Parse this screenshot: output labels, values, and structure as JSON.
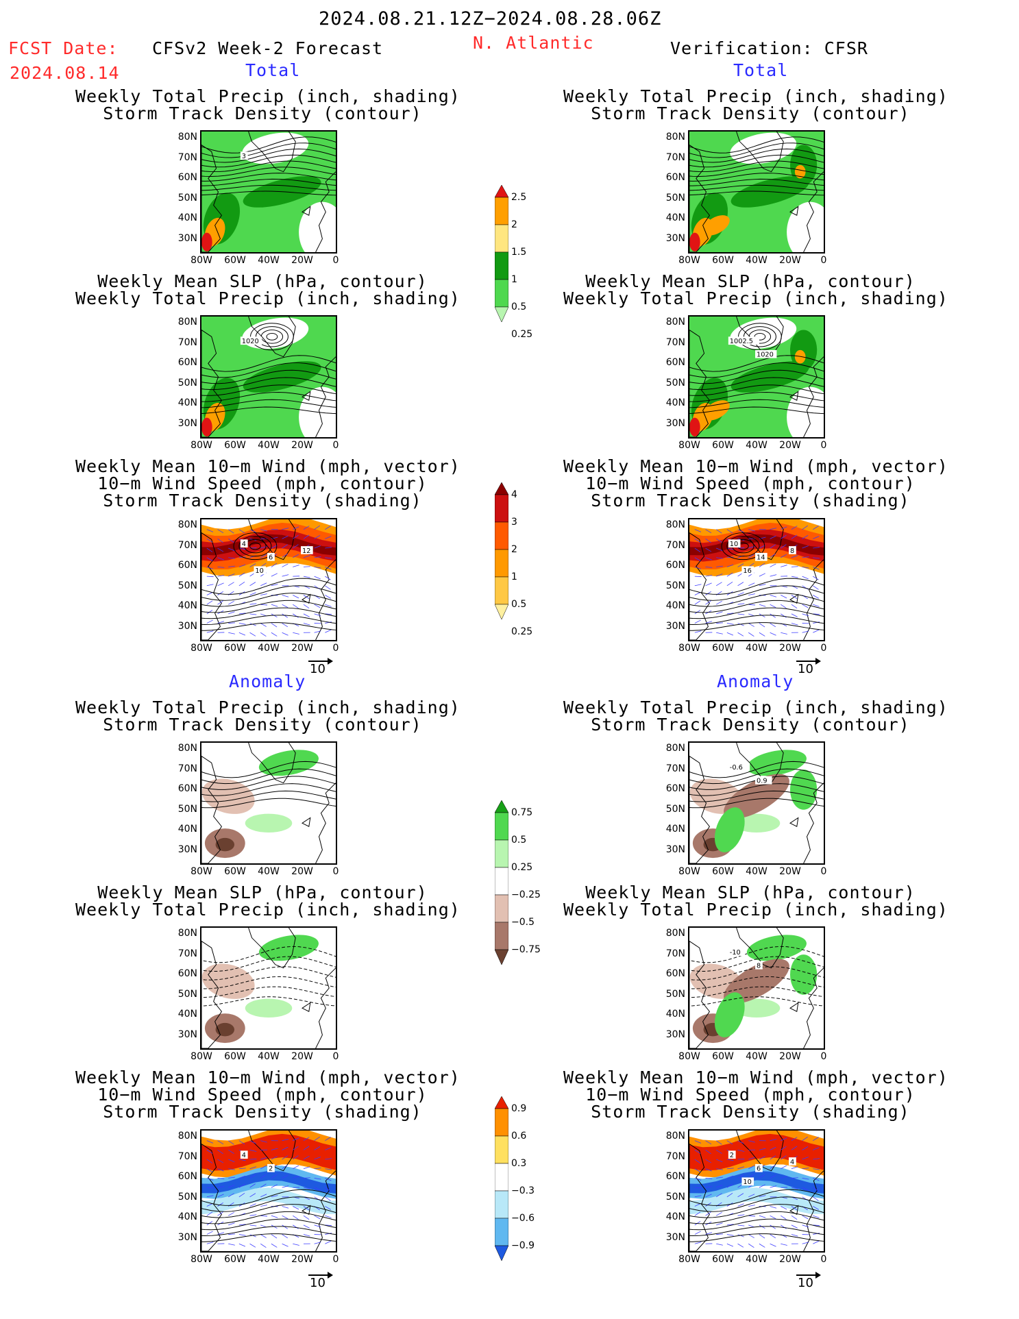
{
  "header": {
    "date_range": "2024.08.21.12Z−2024.08.28.06Z",
    "fcst_label": "FCST Date:",
    "fcst_date": "2024.08.14",
    "forecast_title": "CFSv2 Week-2 Forecast",
    "region": "N. Atlantic",
    "verification": "Verification: CFSR"
  },
  "sections": {
    "total": "Total",
    "anomaly": "Anomaly"
  },
  "titles": {
    "precip_storm": [
      "Weekly Total Precip (inch, shading)",
      "Storm Track Density (contour)"
    ],
    "slp_precip": [
      "Weekly Mean SLP (hPa, contour)",
      "Weekly Total Precip (inch, shading)"
    ],
    "wind_storm": [
      "Weekly Mean 10−m Wind (mph, vector)",
      "10−m Wind Speed (mph, contour)",
      "Storm Track Density (shading)"
    ]
  },
  "axes": {
    "lat": [
      "80N",
      "70N",
      "60N",
      "50N",
      "40N",
      "30N"
    ],
    "lon": [
      "80W",
      "60W",
      "40W",
      "20W",
      "0"
    ]
  },
  "vector_ref": "10",
  "colorbars": {
    "precip_total": {
      "labels": [
        "2.5",
        "2",
        "1.5",
        "1",
        "0.5",
        "0.25"
      ],
      "colors": [
        "#e01414",
        "#ff9f00",
        "#ffe680",
        "#129a12",
        "#4fd84f",
        "#b8f5b0"
      ]
    },
    "storm_total": {
      "labels": [
        "4",
        "3",
        "2",
        "1",
        "0.5",
        "0.25"
      ],
      "colors": [
        "#8b0000",
        "#cc1010",
        "#ff5a00",
        "#ff9900",
        "#ffc844",
        "#fff0a0"
      ]
    },
    "precip_anom": {
      "labels": [
        "0.75",
        "0.5",
        "0.25",
        "−0.25",
        "−0.5",
        "−0.75"
      ],
      "colors": [
        "#18a018",
        "#50d850",
        "#b8f5b0",
        "#ffffff",
        "#e2c0b2",
        "#a8786a",
        "#6a4030"
      ]
    },
    "storm_anom": {
      "labels": [
        "0.9",
        "0.6",
        "0.3",
        "−0.3",
        "−0.6",
        "−0.9"
      ],
      "colors": [
        "#e82000",
        "#ff9000",
        "#ffe060",
        "#ffffff",
        "#b8e8f8",
        "#60b8f0",
        "#1e5ae0"
      ]
    }
  },
  "map_labels": {
    "f_total_precip": [
      "3"
    ],
    "v_total_slp": [
      "1002.5",
      "1020"
    ],
    "f_total_slp": [
      "1020"
    ],
    "f_total_wind": [
      "4",
      "6",
      "10",
      "12"
    ],
    "v_total_wind": [
      "10",
      "14",
      "16",
      "8"
    ],
    "v_anom_precip": [
      "-0.6",
      "0.9"
    ],
    "v_anom_slp": [
      "-10",
      "8"
    ],
    "f_anom_wind": [
      "4",
      "2"
    ],
    "v_anom_wind": [
      "2",
      "6",
      "10",
      "4"
    ]
  }
}
